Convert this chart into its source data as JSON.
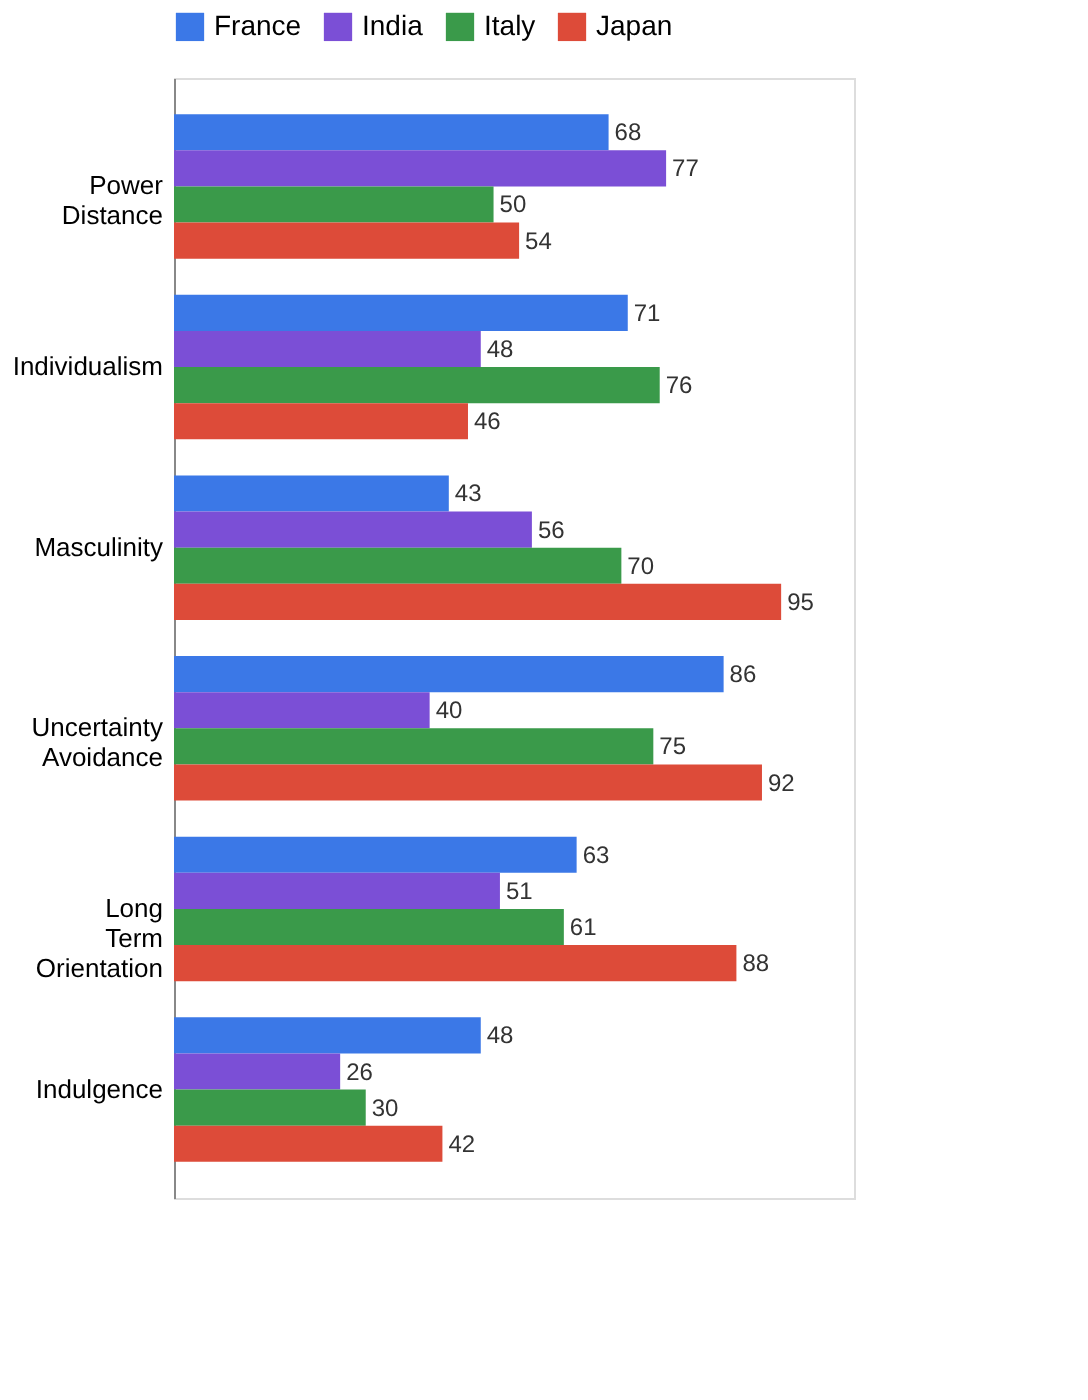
{
  "chart_data": {
    "type": "bar",
    "orientation": "horizontal",
    "categories": [
      "Power Distance",
      "Individualism",
      "Masculinity",
      "Uncertainty Avoidance",
      "Long Term Orientation",
      "Indulgence"
    ],
    "series": [
      {
        "name": "France",
        "color": "#3b78e7",
        "values": [
          68,
          71,
          43,
          86,
          63,
          48
        ]
      },
      {
        "name": "India",
        "color": "#7b4fd6",
        "values": [
          77,
          48,
          56,
          40,
          51,
          26
        ]
      },
      {
        "name": "Italy",
        "color": "#3a9a4a",
        "values": [
          50,
          76,
          70,
          75,
          61,
          30
        ]
      },
      {
        "name": "Japan",
        "color": "#dd4b39",
        "values": [
          54,
          46,
          95,
          92,
          88,
          42
        ]
      }
    ],
    "data_labels": true,
    "legend": "top",
    "grid": false
  }
}
